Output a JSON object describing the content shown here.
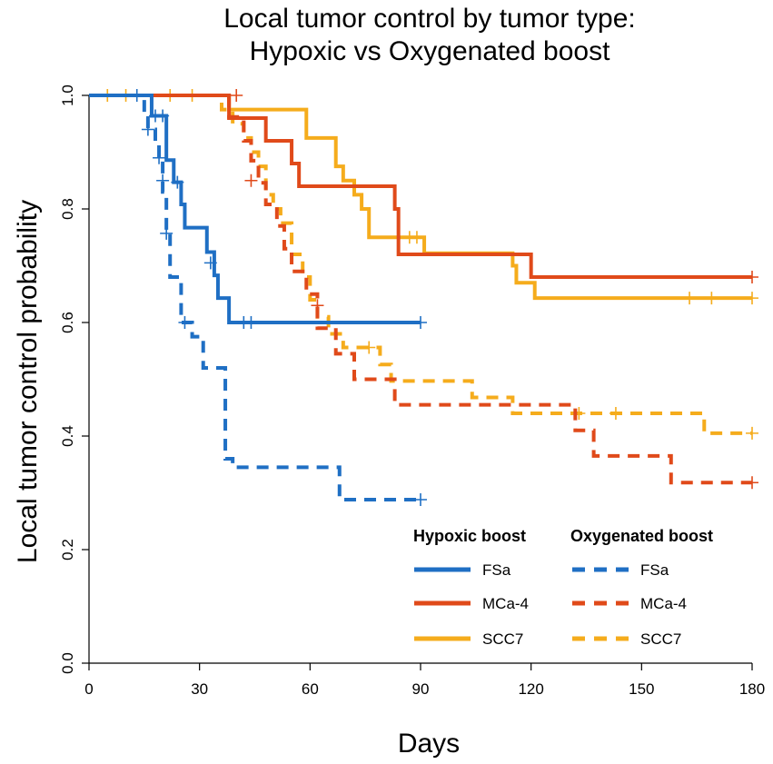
{
  "chart_data": {
    "type": "line",
    "subtype": "kaplan-meier step",
    "title_lines": [
      "Local tumor control by tumor type:",
      "Hypoxic vs Oxygenated boost"
    ],
    "xlabel": "Days",
    "ylabel": "Local tumor control probability",
    "xlim": [
      0,
      180
    ],
    "ylim": [
      0,
      1
    ],
    "xticks": [
      0,
      30,
      60,
      90,
      120,
      150,
      180
    ],
    "yticks": [
      "0.0",
      "0.2",
      "0.4",
      "0.6",
      "0.8",
      "1.0"
    ],
    "legend": {
      "position": "bottom-right",
      "hypoxic_title": "Hypoxic boost",
      "oxygenated_title": "Oxygenated boost"
    },
    "series": [
      {
        "name": "FSa",
        "group": "Hypoxic boost",
        "color": "#1f6fc4",
        "dash": "solid",
        "steps": [
          [
            0,
            1.0
          ],
          [
            17,
            0.964
          ],
          [
            21,
            0.886
          ],
          [
            23,
            0.847
          ],
          [
            25,
            0.808
          ],
          [
            26,
            0.767
          ],
          [
            32,
            0.724
          ],
          [
            34,
            0.683
          ],
          [
            35,
            0.643
          ],
          [
            38,
            0.6
          ],
          [
            90,
            0.6
          ]
        ],
        "censored": [
          [
            13,
            1.0
          ],
          [
            18,
            0.964
          ],
          [
            20,
            0.964
          ],
          [
            24,
            0.847
          ],
          [
            33,
            0.705
          ],
          [
            42,
            0.6
          ],
          [
            44,
            0.6
          ],
          [
            90,
            0.6
          ]
        ]
      },
      {
        "name": "MCa-4",
        "group": "Hypoxic boost",
        "color": "#e04a1a",
        "dash": "solid",
        "steps": [
          [
            0,
            1.0
          ],
          [
            38,
            0.96
          ],
          [
            48,
            0.92
          ],
          [
            55,
            0.88
          ],
          [
            57,
            0.84
          ],
          [
            83,
            0.8
          ],
          [
            84,
            0.72
          ],
          [
            120,
            0.68
          ],
          [
            180,
            0.68
          ]
        ],
        "censored": [
          [
            40,
            1.0
          ],
          [
            180,
            0.68
          ]
        ]
      },
      {
        "name": "SCC7",
        "group": "Hypoxic boost",
        "color": "#f5ac1c",
        "dash": "solid",
        "steps": [
          [
            0,
            1.0
          ],
          [
            38,
            0.975
          ],
          [
            59,
            0.925
          ],
          [
            67,
            0.875
          ],
          [
            69,
            0.85
          ],
          [
            72,
            0.825
          ],
          [
            74,
            0.8
          ],
          [
            76,
            0.75
          ],
          [
            91,
            0.722
          ],
          [
            115,
            0.7
          ],
          [
            116,
            0.67
          ],
          [
            121,
            0.643
          ],
          [
            180,
            0.643
          ]
        ],
        "censored": [
          [
            5,
            1.0
          ],
          [
            10,
            1.0
          ],
          [
            22,
            1.0
          ],
          [
            28,
            1.0
          ],
          [
            87,
            0.75
          ],
          [
            89,
            0.75
          ],
          [
            163,
            0.643
          ],
          [
            169,
            0.643
          ],
          [
            180,
            0.643
          ]
        ]
      },
      {
        "name": "FSa",
        "group": "Oxygenated boost",
        "color": "#1f6fc4",
        "dash": "dashed",
        "steps": [
          [
            0,
            1.0
          ],
          [
            15,
            0.96
          ],
          [
            16,
            0.94
          ],
          [
            18,
            0.92
          ],
          [
            19,
            0.89
          ],
          [
            20,
            0.83
          ],
          [
            21,
            0.76
          ],
          [
            22,
            0.68
          ],
          [
            25,
            0.6
          ],
          [
            28,
            0.575
          ],
          [
            31,
            0.52
          ],
          [
            37,
            0.36
          ],
          [
            39,
            0.345
          ],
          [
            68,
            0.288
          ],
          [
            90,
            0.288
          ]
        ],
        "censored": [
          [
            16,
            0.94
          ],
          [
            19,
            0.89
          ],
          [
            20,
            0.85
          ],
          [
            21,
            0.757
          ],
          [
            26,
            0.6
          ],
          [
            90,
            0.288
          ]
        ]
      },
      {
        "name": "MCa-4",
        "group": "Oxygenated boost",
        "color": "#e04a1a",
        "dash": "dashed",
        "steps": [
          [
            0,
            1.0
          ],
          [
            38,
            0.962
          ],
          [
            42,
            0.92
          ],
          [
            44,
            0.885
          ],
          [
            46,
            0.846
          ],
          [
            48,
            0.808
          ],
          [
            51,
            0.77
          ],
          [
            53,
            0.73
          ],
          [
            55,
            0.69
          ],
          [
            59,
            0.65
          ],
          [
            62,
            0.59
          ],
          [
            67,
            0.545
          ],
          [
            72,
            0.5
          ],
          [
            83,
            0.455
          ],
          [
            132,
            0.41
          ],
          [
            137,
            0.365
          ],
          [
            158,
            0.318
          ],
          [
            180,
            0.318
          ]
        ],
        "censored": [
          [
            44,
            0.85
          ],
          [
            62,
            0.63
          ],
          [
            180,
            0.318
          ]
        ]
      },
      {
        "name": "SCC7",
        "group": "Oxygenated boost",
        "color": "#f5ac1c",
        "dash": "dashed",
        "steps": [
          [
            0,
            1.0
          ],
          [
            36,
            0.975
          ],
          [
            39,
            0.95
          ],
          [
            42,
            0.925
          ],
          [
            44,
            0.9
          ],
          [
            46,
            0.875
          ],
          [
            48,
            0.825
          ],
          [
            50,
            0.8
          ],
          [
            52,
            0.775
          ],
          [
            55,
            0.72
          ],
          [
            58,
            0.68
          ],
          [
            60,
            0.64
          ],
          [
            62,
            0.61
          ],
          [
            65,
            0.58
          ],
          [
            69,
            0.556
          ],
          [
            79,
            0.526
          ],
          [
            82,
            0.497
          ],
          [
            104,
            0.468
          ],
          [
            115,
            0.44
          ],
          [
            167,
            0.405
          ],
          [
            180,
            0.405
          ]
        ],
        "censored": [
          [
            76,
            0.556
          ],
          [
            133,
            0.44
          ],
          [
            143,
            0.44
          ],
          [
            180,
            0.405
          ]
        ]
      }
    ]
  }
}
